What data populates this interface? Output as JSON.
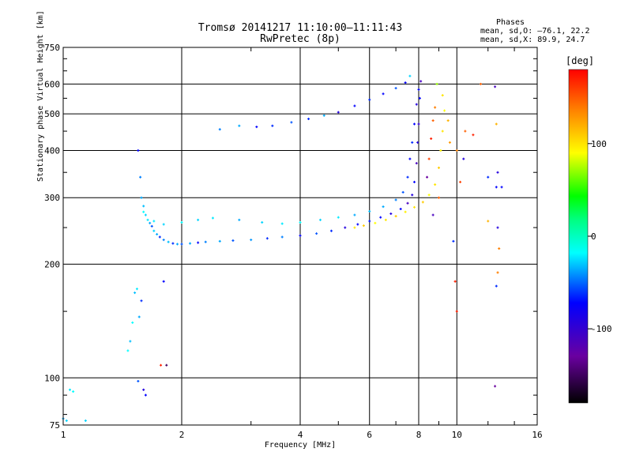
{
  "title_line1": "Tromsø 20141217 11:10:00–11:11:43",
  "title_line2": "RwPretec (8p)",
  "stats": {
    "heading": "Phases",
    "o_line": "mean, sd,O: –76.1, 22.2",
    "x_line": "mean, sd,X:  89.9, 24.7"
  },
  "colorbar": {
    "unit": "[deg]",
    "ticks": [
      100,
      0,
      -100
    ],
    "range": [
      -180,
      180
    ],
    "colors": [
      "#000000",
      "#6a00a0",
      "#0000ff",
      "#00ffff",
      "#00ff00",
      "#ffff00",
      "#ff8000",
      "#ff0000"
    ]
  },
  "chart_data": {
    "type": "scatter",
    "title": "Tromsø 20141217 11:10:00–11:11:43",
    "subtitle": "RwPretec (8p)",
    "xlabel": "Frequency [MHz]",
    "ylabel": "Stationary phase Virtual Height [km]",
    "x_scale": "log",
    "y_scale": "log",
    "xlim": [
      1,
      16
    ],
    "ylim": [
      75,
      750
    ],
    "x_ticks": [
      1,
      2,
      4,
      6,
      8,
      10,
      16
    ],
    "y_ticks": [
      75,
      100,
      200,
      300,
      400,
      500,
      600,
      750
    ],
    "x_grid": [
      2,
      4,
      6,
      8,
      10
    ],
    "y_grid": [
      100,
      200,
      300,
      400,
      500,
      600
    ],
    "grid": true,
    "color_variable": "phase",
    "series": [
      {
        "points": [
          [
            1.0,
            78,
            -60
          ],
          [
            1.02,
            77,
            -50
          ],
          [
            1.04,
            93,
            -45
          ],
          [
            1.06,
            92,
            -40
          ],
          [
            1.14,
            77,
            -50
          ],
          [
            1.46,
            118,
            -40
          ],
          [
            1.48,
            125,
            -55
          ],
          [
            1.5,
            140,
            -40
          ],
          [
            1.52,
            168,
            -55
          ],
          [
            1.54,
            172,
            -45
          ],
          [
            1.56,
            145,
            -60
          ],
          [
            1.58,
            160,
            -90
          ],
          [
            1.55,
            98,
            -80
          ],
          [
            1.6,
            93,
            -110
          ],
          [
            1.62,
            90,
            -100
          ],
          [
            1.55,
            400,
            -100
          ],
          [
            1.57,
            340,
            -70
          ],
          [
            1.58,
            300,
            -60
          ],
          [
            1.6,
            285,
            -55
          ],
          [
            1.62,
            270,
            -50
          ],
          [
            1.64,
            262,
            -45
          ],
          [
            1.66,
            257,
            -60
          ],
          [
            1.68,
            252,
            -80
          ],
          [
            1.7,
            245,
            -50
          ],
          [
            1.73,
            240,
            -60
          ],
          [
            1.76,
            236,
            -90
          ],
          [
            1.8,
            232,
            -70
          ],
          [
            1.85,
            229,
            -55
          ],
          [
            1.9,
            227,
            -90
          ],
          [
            1.95,
            226,
            -60
          ],
          [
            2.0,
            226,
            -80
          ],
          [
            2.1,
            227,
            -60
          ],
          [
            2.2,
            228,
            -100
          ],
          [
            2.3,
            229,
            -70
          ],
          [
            2.5,
            230,
            -60
          ],
          [
            2.7,
            231,
            -80
          ],
          [
            3.0,
            232,
            -65
          ],
          [
            3.3,
            234,
            -90
          ],
          [
            3.6,
            236,
            -70
          ],
          [
            4.0,
            238,
            -100
          ],
          [
            4.4,
            241,
            -80
          ],
          [
            4.8,
            245,
            -90
          ],
          [
            5.2,
            250,
            -110
          ],
          [
            5.6,
            255,
            -100
          ],
          [
            6.0,
            260,
            -95
          ],
          [
            6.4,
            266,
            -100
          ],
          [
            6.8,
            272,
            -110
          ],
          [
            7.2,
            280,
            -100
          ],
          [
            7.5,
            290,
            -120
          ],
          [
            7.7,
            305,
            -110
          ],
          [
            7.8,
            330,
            -100
          ],
          [
            7.9,
            370,
            -120
          ],
          [
            7.95,
            420,
            -110
          ],
          [
            8.0,
            470,
            -115
          ],
          [
            8.05,
            550,
            -100
          ],
          [
            8.1,
            610,
            -120
          ],
          [
            1.6,
            275,
            -40
          ],
          [
            1.7,
            260,
            -45
          ],
          [
            1.8,
            255,
            -50
          ],
          [
            2.0,
            258,
            -40
          ],
          [
            2.2,
            262,
            -50
          ],
          [
            2.4,
            265,
            -45
          ],
          [
            2.8,
            262,
            -60
          ],
          [
            3.2,
            258,
            -50
          ],
          [
            3.6,
            256,
            -45
          ],
          [
            4.0,
            258,
            -40
          ],
          [
            4.5,
            262,
            -50
          ],
          [
            5.0,
            266,
            -45
          ],
          [
            5.5,
            270,
            -60
          ],
          [
            6.0,
            276,
            -55
          ],
          [
            6.5,
            284,
            -60
          ],
          [
            7.0,
            296,
            -70
          ],
          [
            7.3,
            310,
            -80
          ],
          [
            7.5,
            340,
            -90
          ],
          [
            7.6,
            380,
            -100
          ],
          [
            7.7,
            420,
            -90
          ],
          [
            7.8,
            470,
            -100
          ],
          [
            7.9,
            530,
            -110
          ],
          [
            8.0,
            580,
            -100
          ],
          [
            7.6,
            630,
            -50
          ],
          [
            2.5,
            455,
            -70
          ],
          [
            2.8,
            465,
            -60
          ],
          [
            3.1,
            462,
            -100
          ],
          [
            3.4,
            465,
            -90
          ],
          [
            3.8,
            475,
            -80
          ],
          [
            4.2,
            485,
            -90
          ],
          [
            4.6,
            495,
            -60
          ],
          [
            5.0,
            505,
            -110
          ],
          [
            5.5,
            525,
            -100
          ],
          [
            6.0,
            545,
            -90
          ],
          [
            6.5,
            565,
            -100
          ],
          [
            7.0,
            585,
            -80
          ],
          [
            7.4,
            605,
            -100
          ],
          [
            5.5,
            250,
            100
          ],
          [
            5.8,
            253,
            110
          ],
          [
            6.2,
            257,
            90
          ],
          [
            6.6,
            262,
            100
          ],
          [
            7.0,
            268,
            110
          ],
          [
            7.4,
            275,
            95
          ],
          [
            7.8,
            283,
            100
          ],
          [
            8.2,
            292,
            110
          ],
          [
            8.5,
            305,
            90
          ],
          [
            8.8,
            325,
            100
          ],
          [
            9.0,
            360,
            110
          ],
          [
            9.1,
            400,
            95
          ],
          [
            9.2,
            450,
            100
          ],
          [
            9.3,
            510,
            90
          ],
          [
            9.2,
            560,
            100
          ],
          [
            8.9,
            600,
            70
          ],
          [
            9.5,
            480,
            120
          ],
          [
            9.6,
            420,
            130
          ],
          [
            10.0,
            400,
            140
          ],
          [
            10.5,
            450,
            150
          ],
          [
            10.4,
            380,
            -110
          ],
          [
            10.2,
            330,
            160
          ],
          [
            11.0,
            440,
            170
          ],
          [
            11.5,
            600,
            150
          ],
          [
            12.0,
            260,
            120
          ],
          [
            8.5,
            380,
            160
          ],
          [
            8.6,
            430,
            170
          ],
          [
            8.7,
            480,
            150
          ],
          [
            8.8,
            520,
            140
          ],
          [
            9.0,
            300,
            150
          ],
          [
            8.4,
            340,
            -130
          ],
          [
            8.7,
            270,
            -120
          ],
          [
            9.8,
            230,
            -90
          ],
          [
            9.9,
            180,
            170
          ],
          [
            10.0,
            150,
            170
          ],
          [
            1.8,
            180,
            -100
          ],
          [
            1.83,
            108,
            -150
          ],
          [
            1.77,
            108,
            170
          ],
          [
            12.5,
            590,
            -120
          ],
          [
            12.6,
            470,
            120
          ],
          [
            12.7,
            350,
            -110
          ],
          [
            12.6,
            320,
            -100
          ],
          [
            12.7,
            250,
            -110
          ],
          [
            12.8,
            220,
            140
          ],
          [
            12.7,
            190,
            140
          ],
          [
            12.6,
            175,
            -90
          ],
          [
            12.5,
            95,
            -130
          ],
          [
            13.0,
            320,
            -100
          ],
          [
            12.0,
            340,
            -90
          ]
        ]
      }
    ]
  }
}
